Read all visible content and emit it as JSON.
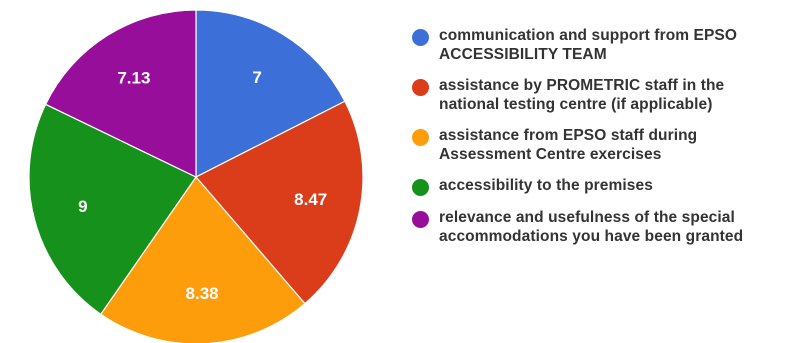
{
  "chart_data": {
    "type": "pie",
    "slices": [
      {
        "label": "communication and support from EPSO ACCESSIBILITY TEAM",
        "value": 7,
        "value_label": "7",
        "color": "#3d6fd8"
      },
      {
        "label": "assistance by PROMETRIC staff in the national testing centre (if applicable)",
        "value": 8.47,
        "value_label": "8.47",
        "color": "#db3d1a"
      },
      {
        "label": "assistance from EPSO staff during Assessment Centre exercises",
        "value": 8.38,
        "value_label": "8.38",
        "color": "#fd9d0b"
      },
      {
        "label": "accessibility to the premises",
        "value": 9,
        "value_label": "9",
        "color": "#15911c"
      },
      {
        "label": "relevance and usefulness of the special accommodations you have been granted",
        "value": 7.13,
        "value_label": "7.13",
        "color": "#970e9b"
      }
    ],
    "legend_position": "right",
    "start_angle": "top, clockwise"
  }
}
